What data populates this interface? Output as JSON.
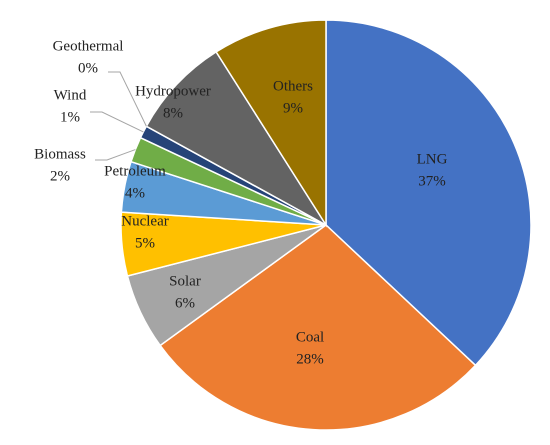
{
  "chart_data": {
    "type": "pie",
    "categories": [
      "LNG",
      "Coal",
      "Solar",
      "Nuclear",
      "Petroleum",
      "Biomass",
      "Wind",
      "Geothermal",
      "Hydropower",
      "Others"
    ],
    "values": [
      37,
      28,
      6,
      5,
      4,
      2,
      1,
      0,
      8,
      9
    ],
    "value_labels": [
      "37%",
      "28%",
      "6%",
      "5%",
      "4%",
      "2%",
      "1%",
      "0%",
      "8%",
      "9%"
    ],
    "colors": [
      "#4472c4",
      "#ed7d31",
      "#a5a5a5",
      "#ffc000",
      "#5b9bd5",
      "#70ad47",
      "#264478",
      "#9e480e",
      "#636363",
      "#997300"
    ]
  }
}
